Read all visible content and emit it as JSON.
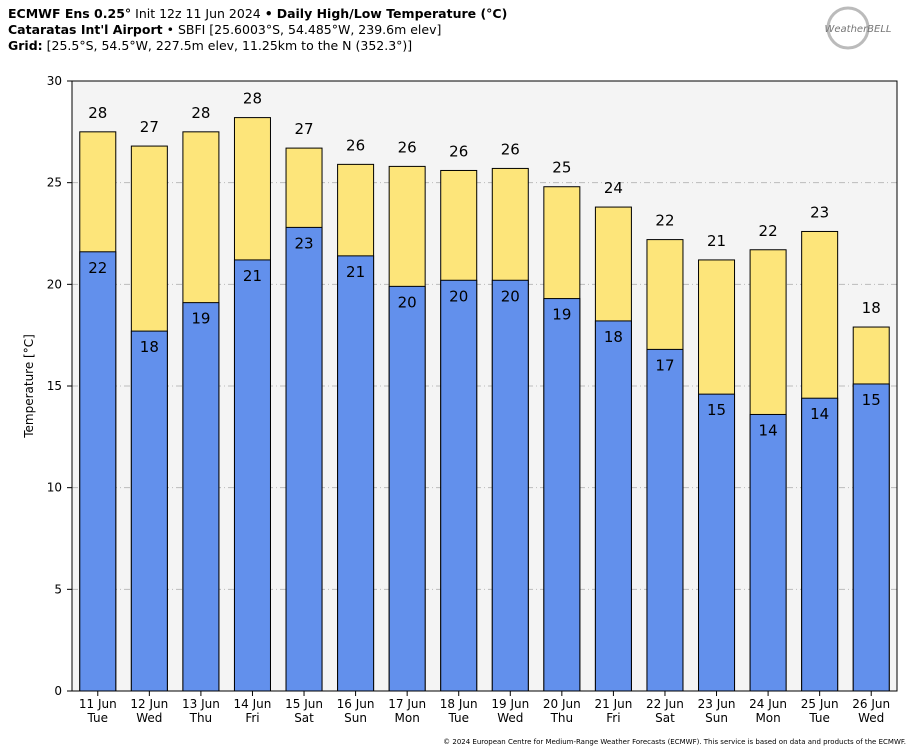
{
  "chart_data": {
    "type": "bar",
    "header": {
      "model": "ECMWF Ens 0.25°",
      "init": "Init 12z 11 Jun 2024",
      "sep": "•",
      "product": "Daily High/Low Temperature (°C)",
      "station": "Cataratas Int'l Airport",
      "station_info": "• SBFI [25.6003°S, 54.485°W, 239.6m elev]",
      "grid_label": "Grid:",
      "grid_info": "[25.5°S, 54.5°W, 227.5m elev, 11.25km to the N (352.3°)]"
    },
    "logo": "WeatherBELL",
    "footer": "© 2024 European Centre for Medium-Range Weather Forecasts (ECMWF). This service is based on data and products of the ECMWF.",
    "y_label": "Temperature [°C]",
    "categories": [
      "11 Jun",
      "12 Jun",
      "13 Jun",
      "14 Jun",
      "15 Jun",
      "16 Jun",
      "17 Jun",
      "18 Jun",
      "19 Jun",
      "20 Jun",
      "21 Jun",
      "22 Jun",
      "23 Jun",
      "24 Jun",
      "25 Jun",
      "26 Jun"
    ],
    "weekdays": [
      "Tue",
      "Wed",
      "Thu",
      "Fri",
      "Sat",
      "Sun",
      "Mon",
      "Tue",
      "Wed",
      "Thu",
      "Fri",
      "Sat",
      "Sun",
      "Mon",
      "Tue",
      "Wed"
    ],
    "series": [
      {
        "name": "High",
        "color": "#fde57a",
        "values": [
          27.5,
          26.8,
          27.5,
          28.2,
          26.7,
          25.9,
          25.8,
          25.6,
          25.7,
          24.8,
          23.8,
          22.2,
          21.2,
          21.7,
          22.6,
          17.9
        ],
        "value_labels": [
          "28",
          "27",
          "28",
          "28",
          "27",
          "26",
          "26",
          "26",
          "26",
          "25",
          "24",
          "22",
          "21",
          "22",
          "23",
          "18"
        ]
      },
      {
        "name": "Low",
        "color": "#6290ec",
        "values": [
          21.6,
          17.7,
          19.1,
          21.2,
          22.8,
          21.4,
          19.9,
          20.2,
          20.2,
          19.3,
          18.2,
          16.8,
          14.6,
          13.6,
          14.4,
          15.1
        ],
        "value_labels": [
          "22",
          "18",
          "19",
          "21",
          "23",
          "21",
          "20",
          "20",
          "20",
          "19",
          "18",
          "17",
          "15",
          "14",
          "14",
          "15"
        ]
      }
    ],
    "ylim": [
      0,
      30
    ],
    "yticks": [
      0,
      5,
      10,
      15,
      20,
      25,
      30
    ],
    "grid": true
  }
}
